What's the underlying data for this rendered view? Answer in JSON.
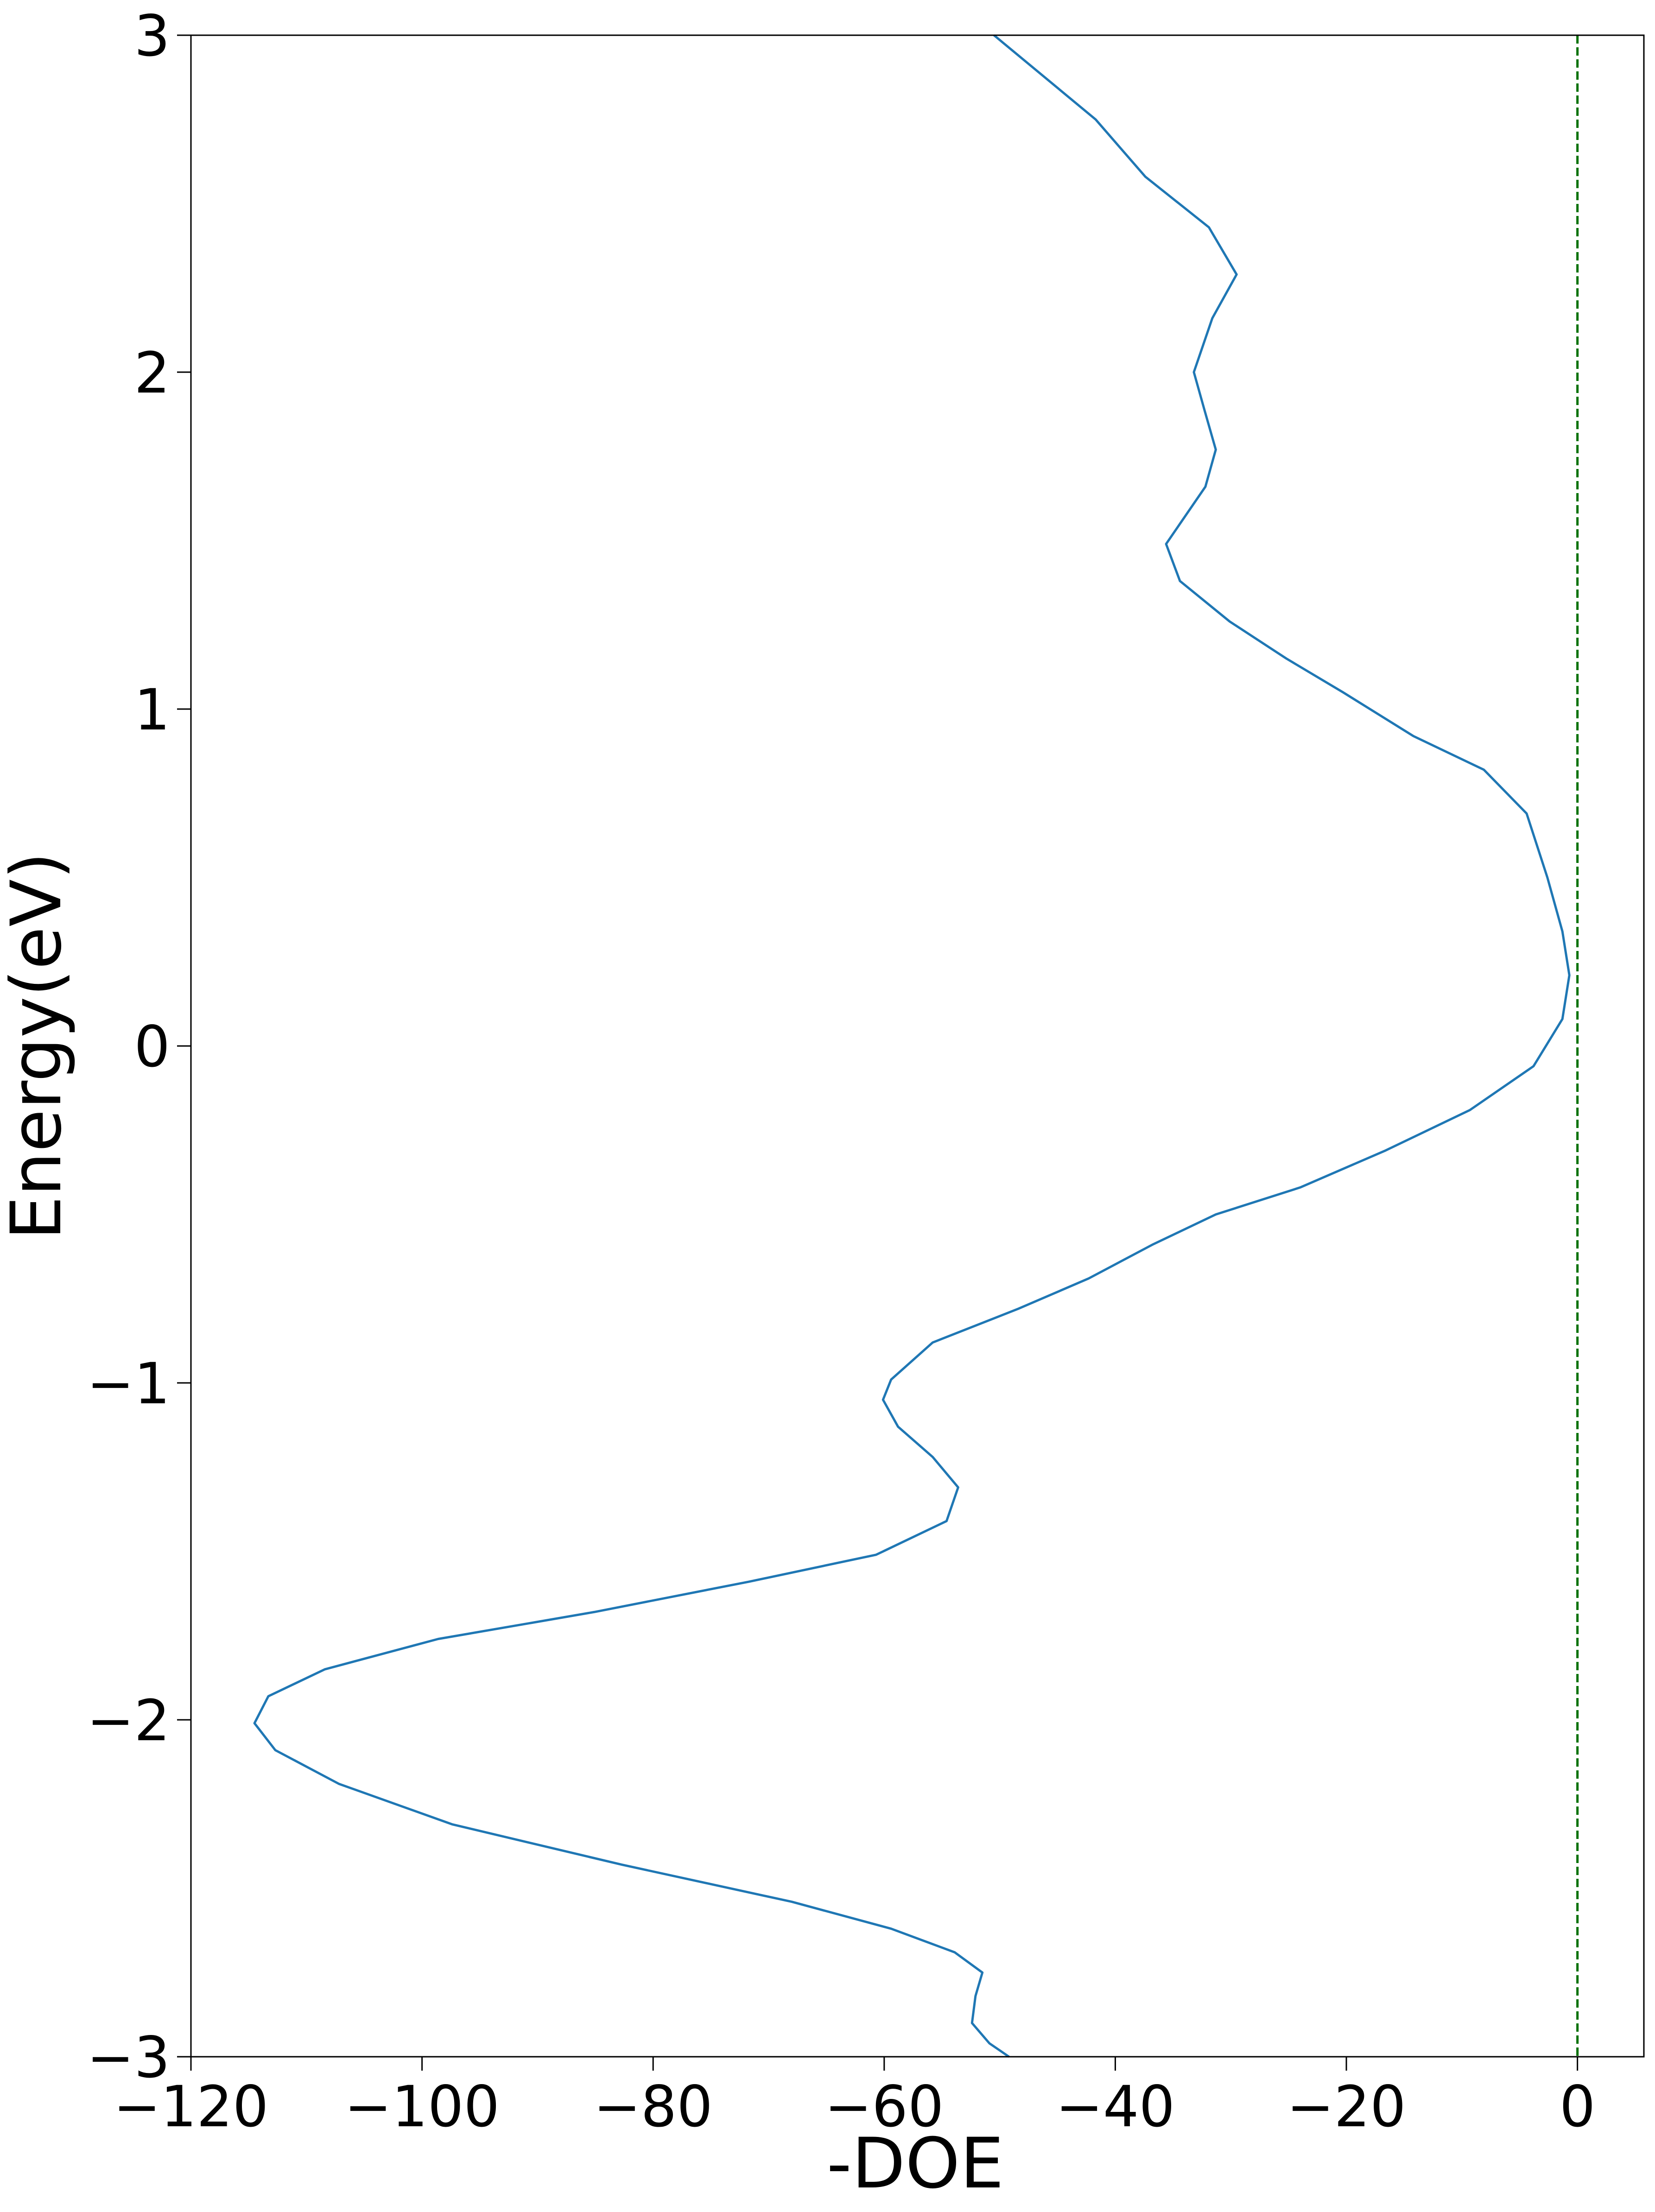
{
  "chart_data": {
    "type": "line",
    "xlabel": "-DOE",
    "ylabel": "Energy(eV)",
    "xlim": [
      -120,
      5.75
    ],
    "ylim": [
      -3,
      3
    ],
    "xticks": [
      {
        "value": -120,
        "label": "−120"
      },
      {
        "value": -100,
        "label": "−100"
      },
      {
        "value": -80,
        "label": "−80"
      },
      {
        "value": -60,
        "label": "−60"
      },
      {
        "value": -40,
        "label": "−40"
      },
      {
        "value": -20,
        "label": "−20"
      },
      0
    ],
    "yticks": [
      {
        "value": -3,
        "label": "−3"
      },
      {
        "value": -2,
        "label": "−2"
      },
      {
        "value": -1,
        "label": "−1"
      },
      0,
      1,
      2,
      3
    ],
    "series": [
      {
        "color": "#1f77b4",
        "x": [
          -50.5,
          -41.7,
          -37.4,
          -31.9,
          -29.5,
          -31.6,
          -33.2,
          -32.3,
          -31.3,
          -32.2,
          -34.4,
          -35.6,
          -34.4,
          -30.1,
          -25.2,
          -20.3,
          -14.2,
          -8.1,
          -4.4,
          -2.6,
          -1.3,
          -0.7,
          -1.3,
          -3.8,
          -9.3,
          -16.6,
          -24.0,
          -31.3,
          -36.8,
          -42.3,
          -48.4,
          -55.8,
          -59.4,
          -60.1,
          -58.8,
          -55.8,
          -53.6,
          -54.6,
          -60.7,
          -71.7,
          -85.1,
          -98.6,
          -108.4,
          -113.3,
          -114.5,
          -112.7,
          -107.2,
          -97.4,
          -82.7,
          -68.0,
          -59.4,
          -53.9,
          -51.5,
          -52.1,
          -52.4,
          -50.9,
          -49.2
        ],
        "values": [
          3.0,
          2.75,
          2.58,
          2.43,
          2.29,
          2.16,
          2.0,
          1.89,
          1.77,
          1.66,
          1.55,
          1.49,
          1.38,
          1.26,
          1.15,
          1.05,
          0.92,
          0.82,
          0.69,
          0.5,
          0.34,
          0.21,
          0.08,
          -0.06,
          -0.19,
          -0.31,
          -0.42,
          -0.5,
          -0.59,
          -0.69,
          -0.78,
          -0.88,
          -0.99,
          -1.05,
          -1.13,
          -1.22,
          -1.31,
          -1.41,
          -1.51,
          -1.59,
          -1.68,
          -1.76,
          -1.85,
          -1.93,
          -2.01,
          -2.09,
          -2.19,
          -2.31,
          -2.43,
          -2.54,
          -2.62,
          -2.69,
          -2.75,
          -2.82,
          -2.9,
          -2.96,
          -3.0
        ]
      }
    ],
    "vline": {
      "x": 0,
      "color": "#007000",
      "dashed": true
    }
  }
}
